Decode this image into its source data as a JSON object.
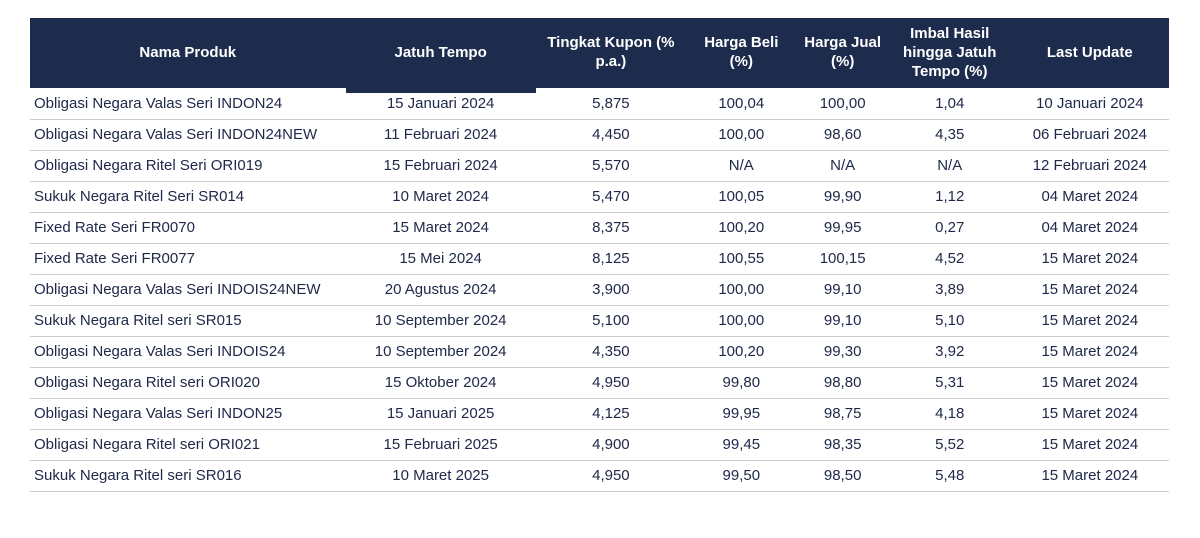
{
  "chart_data": {
    "type": "table",
    "columns": [
      {
        "key": "nama_produk",
        "label": "Nama Produk"
      },
      {
        "key": "jatuh_tempo",
        "label": "Jatuh Tempo"
      },
      {
        "key": "tingkat_kupon",
        "label": "Tingkat Kupon (% p.a.)"
      },
      {
        "key": "harga_beli",
        "label": "Harga Beli (%)"
      },
      {
        "key": "harga_jual",
        "label": "Harga Jual (%)"
      },
      {
        "key": "imbal_hasil",
        "label": "Imbal Hasil hingga Jatuh Tempo (%)"
      },
      {
        "key": "last_update",
        "label": "Last Update"
      }
    ],
    "rows": [
      [
        "Obligasi Negara Valas Seri INDON24",
        "15 Januari 2024",
        "5,875",
        "100,04",
        "100,00",
        "1,04",
        "10 Januari 2024"
      ],
      [
        "Obligasi Negara Valas Seri INDON24NEW",
        "11 Februari 2024",
        "4,450",
        "100,00",
        "98,60",
        "4,35",
        "06 Februari 2024"
      ],
      [
        "Obligasi Negara Ritel Seri ORI019",
        "15 Februari 2024",
        "5,570",
        "N/A",
        "N/A",
        "N/A",
        "12 Februari 2024"
      ],
      [
        "Sukuk Negara Ritel Seri SR014",
        "10 Maret 2024",
        "5,470",
        "100,05",
        "99,90",
        "1,12",
        "04 Maret 2024"
      ],
      [
        "Fixed Rate Seri FR0070",
        "15 Maret 2024",
        "8,375",
        "100,20",
        "99,95",
        "0,27",
        "04 Maret 2024"
      ],
      [
        "Fixed Rate Seri FR0077",
        "15 Mei 2024",
        "8,125",
        "100,55",
        "100,15",
        "4,52",
        "15 Maret 2024"
      ],
      [
        "Obligasi Negara Valas Seri INDOIS24NEW",
        "20 Agustus 2024",
        "3,900",
        "100,00",
        "99,10",
        "3,89",
        "15 Maret 2024"
      ],
      [
        "Sukuk Negara Ritel seri SR015",
        "10 September 2024",
        "5,100",
        "100,00",
        "99,10",
        "5,10",
        "15 Maret 2024"
      ],
      [
        "Obligasi Negara Valas Seri INDOIS24",
        "10 September 2024",
        "4,350",
        "100,20",
        "99,30",
        "3,92",
        "15 Maret 2024"
      ],
      [
        "Obligasi Negara Ritel seri ORI020",
        "15 Oktober 2024",
        "4,950",
        "99,80",
        "98,80",
        "5,31",
        "15 Maret 2024"
      ],
      [
        "Obligasi Negara Valas Seri INDON25",
        "15 Januari 2025",
        "4,125",
        "99,95",
        "98,75",
        "4,18",
        "15 Maret 2024"
      ],
      [
        "Obligasi Negara Ritel seri ORI021",
        "15 Februari 2025",
        "4,900",
        "99,45",
        "98,35",
        "5,52",
        "15 Maret 2024"
      ],
      [
        "Sukuk Negara Ritel seri SR016",
        "10 Maret 2025",
        "4,950",
        "99,50",
        "98,50",
        "5,48",
        "15 Maret 2024"
      ]
    ]
  },
  "colors": {
    "header_bg": "#1d2b4d",
    "header_text": "#ffffff",
    "body_text": "#20294a",
    "row_border": "#c9cdd6",
    "background": "#ffffff"
  }
}
